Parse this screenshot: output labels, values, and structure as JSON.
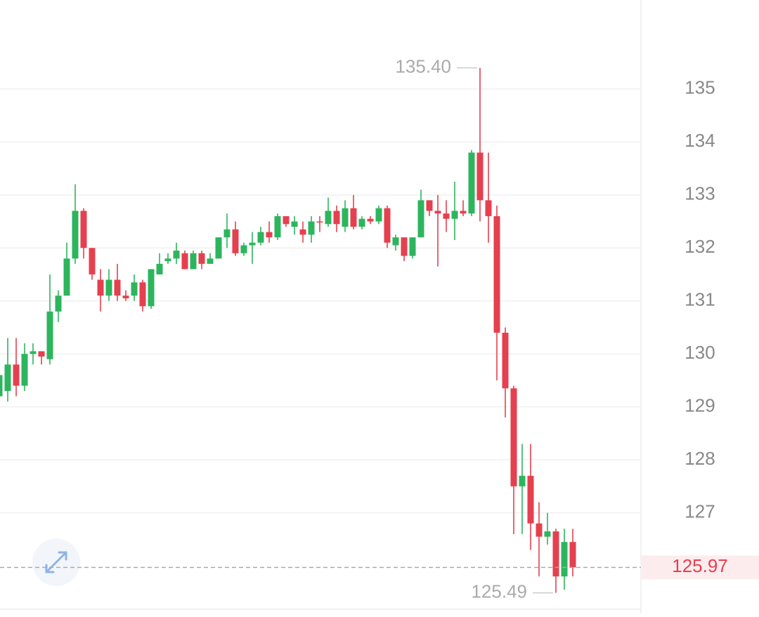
{
  "chart_data": {
    "type": "candlestick",
    "open": [
      129.2,
      129.3,
      129.8,
      129.4,
      130.0,
      130.05,
      129.9,
      130.8,
      131.1,
      131.8,
      132.7,
      132.0,
      131.4,
      131.1,
      131.4,
      131.1,
      131.1,
      131.35,
      130.9,
      131.5,
      131.75,
      131.8,
      131.9,
      131.6,
      131.9,
      131.7,
      131.8,
      132.2,
      132.35,
      131.9,
      132.05,
      132.1,
      132.3,
      132.2,
      132.6,
      132.4,
      132.35,
      132.25,
      132.5,
      132.45,
      132.7,
      132.4,
      132.75,
      132.4,
      132.55,
      132.5,
      132.75,
      132.05,
      132.2,
      131.85,
      132.2,
      132.9,
      132.7,
      132.65,
      132.55,
      132.7,
      132.65,
      133.8,
      132.9,
      132.6,
      130.4,
      129.35,
      127.5,
      127.7,
      126.8,
      126.55,
      126.65,
      125.8,
      126.45
    ],
    "high": [
      130.0,
      130.3,
      130.3,
      130.2,
      130.2,
      130.05,
      131.5,
      131.2,
      132.1,
      133.2,
      132.75,
      132.0,
      131.6,
      131.6,
      131.7,
      131.2,
      131.5,
      131.4,
      131.6,
      131.9,
      131.9,
      132.1,
      131.95,
      131.95,
      131.95,
      131.9,
      132.2,
      132.65,
      132.5,
      132.1,
      132.3,
      132.4,
      132.5,
      132.65,
      132.6,
      132.6,
      132.5,
      132.6,
      132.6,
      132.95,
      132.8,
      132.9,
      133.0,
      132.6,
      132.6,
      132.8,
      132.8,
      132.25,
      132.2,
      132.2,
      133.1,
      132.9,
      133.0,
      132.9,
      133.25,
      132.9,
      133.85,
      135.4,
      133.8,
      132.8,
      130.5,
      129.4,
      128.3,
      128.3,
      127.2,
      127.0,
      126.7,
      126.7,
      126.7
    ],
    "low": [
      129.0,
      129.1,
      129.2,
      129.3,
      129.8,
      129.8,
      129.8,
      130.6,
      131.1,
      131.7,
      131.8,
      131.4,
      130.8,
      131.0,
      131.0,
      131.0,
      131.0,
      130.8,
      130.85,
      131.5,
      131.7,
      131.7,
      131.6,
      131.6,
      131.6,
      131.7,
      131.8,
      132.0,
      131.85,
      131.85,
      131.7,
      132.05,
      132.1,
      132.15,
      132.4,
      132.25,
      132.1,
      132.1,
      132.3,
      132.4,
      132.3,
      132.3,
      132.35,
      132.35,
      132.45,
      132.45,
      132.0,
      131.95,
      131.75,
      131.8,
      132.2,
      132.6,
      131.65,
      132.3,
      132.15,
      132.6,
      132.6,
      132.5,
      132.1,
      129.5,
      128.8,
      126.6,
      126.6,
      126.3,
      125.8,
      126.4,
      125.49,
      125.55,
      125.8
    ],
    "close": [
      129.6,
      129.8,
      129.4,
      130.0,
      130.05,
      129.95,
      130.8,
      131.1,
      131.8,
      132.7,
      132.0,
      131.5,
      131.1,
      131.4,
      131.1,
      131.05,
      131.35,
      130.9,
      131.6,
      131.7,
      131.8,
      131.95,
      131.6,
      131.9,
      131.7,
      131.8,
      132.2,
      132.35,
      131.9,
      132.05,
      132.1,
      132.3,
      132.2,
      132.6,
      132.45,
      132.5,
      132.25,
      132.5,
      132.48,
      132.7,
      132.45,
      132.75,
      132.4,
      132.55,
      132.5,
      132.75,
      132.1,
      132.2,
      131.85,
      132.2,
      132.9,
      132.7,
      132.65,
      132.55,
      132.7,
      132.65,
      133.8,
      132.9,
      132.6,
      130.4,
      129.35,
      127.5,
      127.7,
      126.8,
      126.55,
      126.65,
      125.8,
      126.45,
      125.97
    ],
    "up_color": "#2db55d",
    "down_color": "#e5404f",
    "ylim": [
      125.18,
      136.68
    ],
    "yticks": [
      127,
      128,
      129,
      130,
      131,
      132,
      133,
      134,
      135
    ],
    "grid": true,
    "high_marker": {
      "value": 135.4,
      "label": "135.40"
    },
    "low_marker": {
      "value": 125.49,
      "label": "125.49"
    },
    "last_price": {
      "value": 125.97,
      "label": "125.97"
    }
  }
}
